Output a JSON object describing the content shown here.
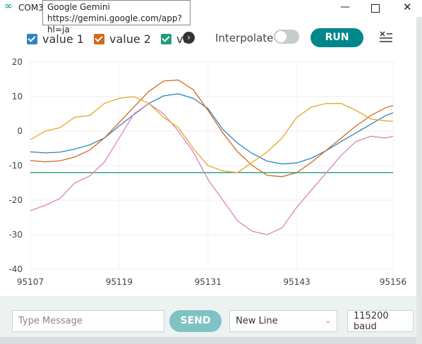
{
  "window": {
    "title": "COM3"
  },
  "tooltip": {
    "title": "Google Gemini",
    "url": "https://gemini.google.com/app?hl=ja"
  },
  "toolbar": {
    "interpolate": "Interpolate",
    "run": "RUN"
  },
  "chart_data": {
    "type": "line",
    "x": [
      95107,
      95109,
      95111,
      95113,
      95115,
      95117,
      95119,
      95121,
      95123,
      95125,
      95127,
      95129,
      95131,
      95133,
      95135,
      95137,
      95139,
      95141,
      95143,
      95145,
      95147,
      95149,
      95151,
      95153,
      95155,
      95156
    ],
    "xlim": [
      95107,
      95156
    ],
    "xticks": [
      95107,
      95119,
      95131,
      95143,
      95156
    ],
    "ylim": [
      -40,
      20
    ],
    "yticks": [
      20,
      10,
      0,
      -10,
      -20,
      -30,
      -40
    ],
    "grid": true,
    "series": [
      {
        "name": "value 1",
        "color": "#2f83bd",
        "values": [
          -6,
          -6.3,
          -6.1,
          -5.2,
          -4,
          -2,
          1.5,
          4.8,
          8,
          10.2,
          10.8,
          9.5,
          6.5,
          0.5,
          -3.5,
          -6.5,
          -8.7,
          -9.5,
          -9.2,
          -7.8,
          -5.6,
          -3,
          -0.5,
          2,
          4.5,
          5.3
        ]
      },
      {
        "name": "value 2",
        "color": "#d2691e",
        "values": [
          -8.5,
          -8.9,
          -8.6,
          -7.5,
          -5.5,
          -2,
          2.5,
          7,
          11.5,
          14.5,
          14.8,
          12,
          6,
          -0.5,
          -6,
          -10,
          -12.8,
          -13.2,
          -12,
          -9,
          -5.5,
          -2,
          1.5,
          4.5,
          6.8,
          7.4
        ]
      },
      {
        "name": "val",
        "color": "#1f9e7a",
        "values": [
          -12,
          -12,
          -12,
          -12,
          -12,
          -12,
          -12,
          -12,
          -12,
          -12,
          -12,
          -12,
          -12,
          -12,
          -12,
          -12,
          -12,
          -12,
          -12,
          -12,
          -12,
          -12,
          -12,
          -12,
          -12,
          -12
        ]
      },
      {
        "color": "#d884bb",
        "values": [
          -23,
          -21.5,
          -19.5,
          -15,
          -13,
          -9,
          -2,
          5,
          8,
          5,
          0,
          -6,
          -14,
          -20,
          -26,
          -29,
          -30,
          -28,
          -22,
          -17,
          -12,
          -7,
          -3,
          -1.5,
          -2,
          -1.5
        ]
      },
      {
        "color": "#e3a722",
        "values": [
          -2.5,
          0,
          1,
          4,
          4.5,
          8,
          9.5,
          10,
          8,
          4,
          1,
          -5,
          -10,
          -11.5,
          -12,
          -9,
          -6,
          -2,
          4,
          7,
          8,
          8,
          6,
          3.5,
          3,
          2.8
        ]
      }
    ]
  },
  "footer": {
    "message_placeholder": "Type Message",
    "send": "SEND",
    "line_ending": "New Line",
    "baud": "115200 baud"
  }
}
